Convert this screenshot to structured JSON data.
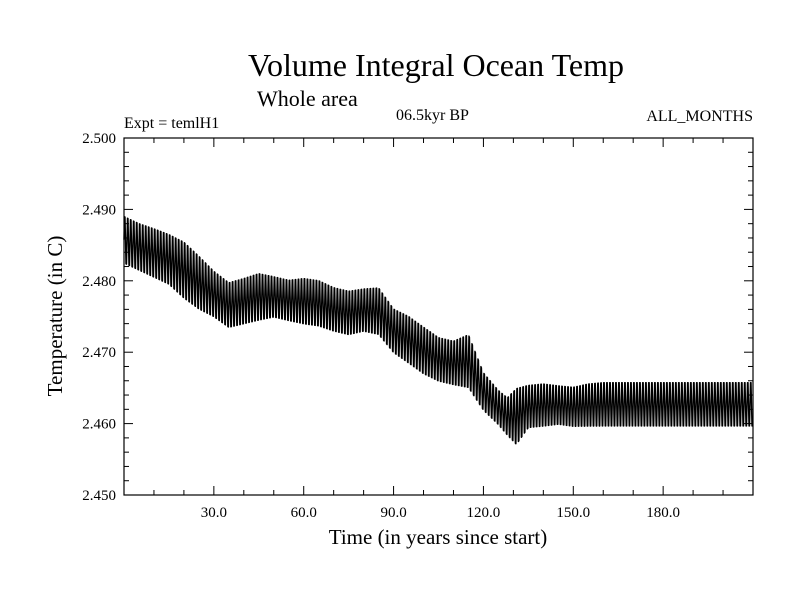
{
  "chart_data": {
    "type": "line",
    "title": "Volume Integral Ocean Temp",
    "subtitle": "Whole area",
    "experiment": "Expt = temlH1",
    "period": "06.5kyr BP",
    "months": "ALL_MONTHS",
    "xlabel": "Time (in years since start)",
    "ylabel": "Temperature (in C)",
    "xlim": [
      0,
      210
    ],
    "ylim": [
      2.45,
      2.5
    ],
    "xticks": [
      {
        "value": 30,
        "label": "30.0"
      },
      {
        "value": 60,
        "label": "60.0"
      },
      {
        "value": 90,
        "label": "90.0"
      },
      {
        "value": 120,
        "label": "120.0"
      },
      {
        "value": 150,
        "label": "150.0"
      },
      {
        "value": 180,
        "label": "180.0"
      }
    ],
    "yticks": [
      {
        "value": 2.45,
        "label": "2.450"
      },
      {
        "value": 2.46,
        "label": "2.460"
      },
      {
        "value": 2.47,
        "label": "2.470"
      },
      {
        "value": 2.48,
        "label": "2.480"
      },
      {
        "value": 2.49,
        "label": "2.490"
      },
      {
        "value": 2.5,
        "label": "2.500"
      }
    ],
    "cycle_years": 1,
    "series": [
      {
        "name": "ALL_MONTHS",
        "color": "#000000",
        "upper_envelope": {
          "x": [
            0,
            5,
            10,
            15,
            20,
            25,
            30,
            35,
            40,
            45,
            50,
            55,
            60,
            65,
            70,
            75,
            80,
            85,
            90,
            95,
            100,
            105,
            110,
            115,
            120,
            125,
            128,
            131,
            135,
            140,
            145,
            150,
            155,
            160,
            170,
            180,
            190,
            200,
            210
          ],
          "y": [
            2.4895,
            2.4885,
            2.4878,
            2.487,
            2.486,
            2.484,
            2.4818,
            2.4802,
            2.4808,
            2.4815,
            2.481,
            2.4805,
            2.4808,
            2.4805,
            2.4795,
            2.479,
            2.4793,
            2.4795,
            2.4765,
            2.4755,
            2.474,
            2.4725,
            2.472,
            2.473,
            2.4675,
            2.465,
            2.464,
            2.4655,
            2.4658,
            2.466,
            2.4657,
            2.4655,
            2.466,
            2.4662,
            2.4662,
            2.4662,
            2.4662,
            2.4662,
            2.4662
          ]
        },
        "lower_envelope": {
          "x": [
            0,
            5,
            10,
            15,
            20,
            25,
            30,
            35,
            40,
            45,
            50,
            55,
            60,
            65,
            70,
            75,
            80,
            85,
            90,
            95,
            100,
            105,
            110,
            115,
            120,
            125,
            128,
            131,
            135,
            140,
            145,
            150,
            155,
            160,
            170,
            180,
            190,
            200,
            210
          ],
          "y": [
            2.482,
            2.481,
            2.48,
            2.479,
            2.477,
            2.4755,
            2.4745,
            2.473,
            2.4735,
            2.474,
            2.4745,
            2.474,
            2.4735,
            2.4732,
            2.4725,
            2.472,
            2.4725,
            2.472,
            2.4695,
            2.468,
            2.4665,
            2.4655,
            2.465,
            2.4645,
            2.4615,
            2.4595,
            2.458,
            2.4565,
            2.459,
            2.4592,
            2.4595,
            2.4592,
            2.4592,
            2.4592,
            2.4592,
            2.4592,
            2.4592,
            2.4592,
            2.4592
          ]
        }
      }
    ]
  }
}
